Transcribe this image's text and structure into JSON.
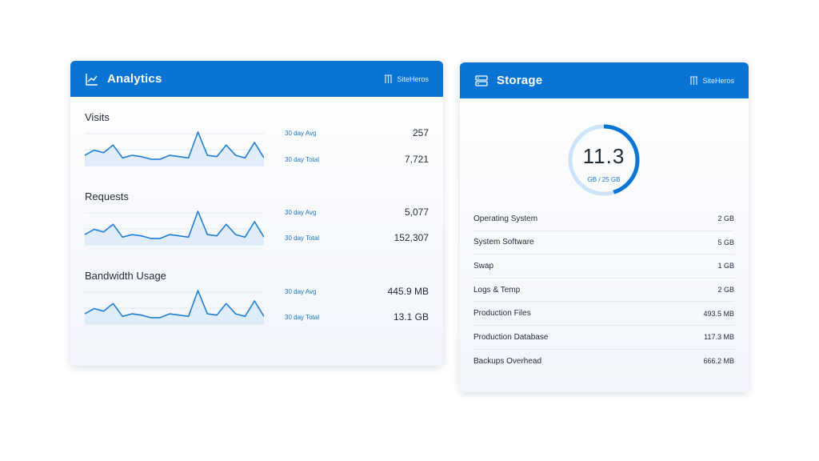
{
  "analytics": {
    "title": "Analytics",
    "brand": "SiteHeros",
    "metrics": [
      {
        "title": "Visits",
        "avg_label": "30 day Avg",
        "avg_value": "257",
        "total_label": "30 day Total",
        "total_value": "7,721",
        "series": [
          4,
          6,
          5,
          8,
          3,
          4,
          3.5,
          2.5,
          2.5,
          4,
          3.5,
          3,
          13,
          4,
          3.5,
          8,
          4,
          3,
          9,
          3
        ]
      },
      {
        "title": "Requests",
        "avg_label": "30 day Avg",
        "avg_value": "5,077",
        "total_label": "30 day Total",
        "total_value": "152,307",
        "series": [
          4,
          6,
          5,
          8,
          3,
          4,
          3.5,
          2.5,
          2.5,
          4,
          3.5,
          3,
          13,
          4,
          3.5,
          8,
          4,
          3,
          9,
          3
        ]
      },
      {
        "title": "Bandwidth Usage",
        "avg_label": "30 day Avg",
        "avg_value": "445.9 MB",
        "total_label": "30 day Total",
        "total_value": "13.1 GB",
        "series": [
          4,
          6,
          5,
          8,
          3,
          4,
          3.5,
          2.5,
          2.5,
          4,
          3.5,
          3,
          13,
          4,
          3.5,
          8,
          4,
          3,
          9,
          3
        ]
      }
    ]
  },
  "storage": {
    "title": "Storage",
    "brand": "SiteHeros",
    "used_value": "11.3",
    "capacity_label": "GB / 25 GB",
    "used_fraction": 0.452,
    "rows": [
      {
        "label": "Operating System",
        "value": "2 GB"
      },
      {
        "label": "System Software",
        "value": "5 GB"
      },
      {
        "label": "Swap",
        "value": "1 GB"
      },
      {
        "label": "Logs & Temp",
        "value": "2 GB"
      },
      {
        "label": "Production Files",
        "value": "493.5 MB"
      },
      {
        "label": "Production Database",
        "value": "117.3 MB"
      },
      {
        "label": "Backups Overhead",
        "value": "666.2 MB"
      }
    ]
  },
  "colors": {
    "header_blue": "#0a74d4",
    "line_blue": "#1f7fd6",
    "area_blue": "#d6e7f8",
    "gauge_track": "#cfe3f8"
  },
  "icons": {
    "analytics": "line-chart-icon",
    "storage": "server-icon",
    "brand": "siteheros-logo-icon"
  }
}
